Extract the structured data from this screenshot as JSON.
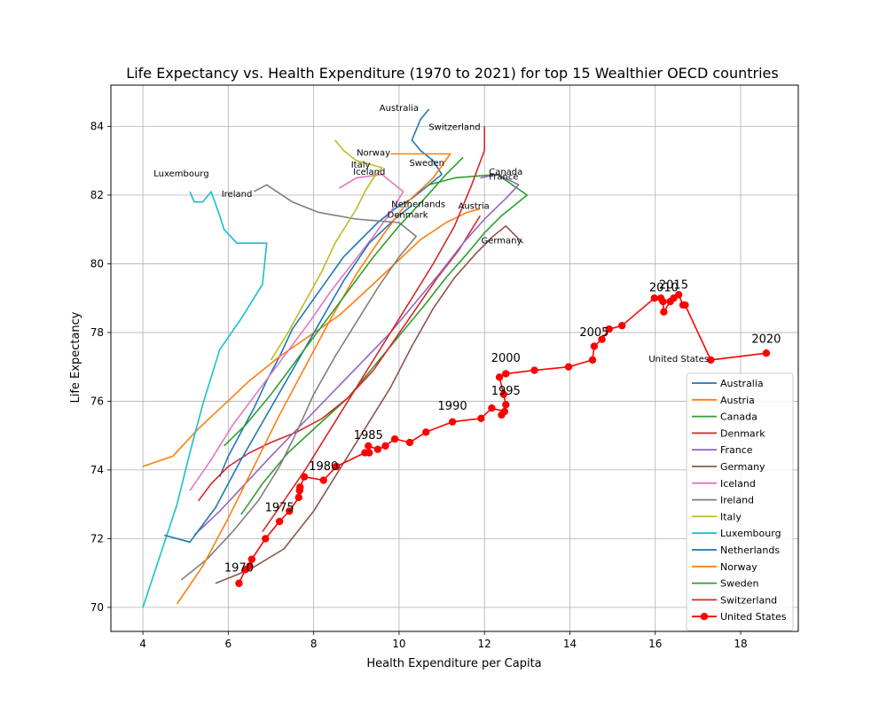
{
  "chart_data": {
    "type": "line",
    "title": "Life Expectancy vs. Health Expenditure (1970 to 2021) for top 15 Wealthier OECD countries",
    "xlabel": "Health Expenditure per Capita",
    "ylabel": "Life Expectancy",
    "xlim": [
      3.25,
      19.35
    ],
    "ylim": [
      69.3,
      85.2
    ],
    "xticks": [
      4,
      6,
      8,
      10,
      12,
      14,
      16,
      18
    ],
    "yticks": [
      70,
      72,
      74,
      76,
      78,
      80,
      82,
      84
    ],
    "grid": true,
    "legend_position": "lower-right",
    "series": [
      {
        "name": "Australia",
        "color": "#1f77b4",
        "x": [
          5.8,
          6.0,
          6.3,
          6.6,
          6.9,
          7.2,
          7.5,
          7.9,
          8.3,
          8.7,
          9.1,
          9.5,
          9.9,
          10.3,
          10.7,
          11.0,
          10.8,
          10.5,
          10.3,
          10.5,
          10.7
        ],
        "y": [
          73.8,
          74.4,
          75.1,
          75.8,
          76.6,
          77.3,
          78.1,
          78.8,
          79.5,
          80.2,
          80.7,
          81.2,
          81.6,
          81.9,
          82.3,
          82.6,
          83.0,
          83.3,
          83.6,
          84.2,
          84.5
        ]
      },
      {
        "name": "Austria",
        "color": "#ff7f0e",
        "x": [
          4.0,
          4.7,
          5.3,
          5.9,
          6.5,
          7.2,
          7.9,
          8.6,
          9.3,
          9.9,
          10.5,
          11.1,
          11.6,
          11.9
        ],
        "y": [
          74.1,
          74.4,
          75.2,
          75.9,
          76.6,
          77.3,
          77.9,
          78.5,
          79.3,
          80.0,
          80.7,
          81.2,
          81.5,
          81.6
        ]
      },
      {
        "name": "Canada",
        "color": "#2ca02c",
        "x": [
          6.3,
          6.8,
          7.4,
          8.1,
          8.8,
          9.4,
          10.0,
          10.6,
          11.1,
          11.6,
          12.0,
          12.4,
          12.8,
          13.0,
          12.3,
          11.3,
          10.7
        ],
        "y": [
          72.7,
          73.6,
          74.5,
          75.3,
          76.1,
          77.0,
          77.9,
          78.8,
          79.6,
          80.3,
          80.9,
          81.4,
          81.8,
          82.0,
          82.6,
          82.5,
          82.3
        ]
      },
      {
        "name": "Denmark",
        "color": "#d62728",
        "x": [
          5.3,
          5.6,
          6.0,
          6.5,
          7.0,
          7.6,
          8.2,
          8.8,
          9.4,
          9.9,
          10.4,
          10.9,
          11.4,
          11.7,
          11.9
        ],
        "y": [
          73.1,
          73.6,
          74.1,
          74.5,
          74.8,
          75.1,
          75.5,
          76.1,
          76.9,
          77.8,
          78.7,
          79.6,
          80.4,
          81.0,
          81.4
        ]
      },
      {
        "name": "France",
        "color": "#9467bd",
        "x": [
          5.2,
          5.8,
          6.4,
          7.0,
          7.7,
          8.4,
          9.1,
          9.8,
          10.4,
          11.0,
          11.5,
          12.0,
          12.5,
          12.8,
          12.3,
          11.9
        ],
        "y": [
          72.1,
          72.8,
          73.6,
          74.4,
          75.3,
          76.2,
          77.1,
          78.0,
          78.9,
          79.8,
          80.6,
          81.3,
          81.9,
          82.3,
          82.6,
          82.5
        ]
      },
      {
        "name": "Germany",
        "color": "#8c564b",
        "x": [
          5.7,
          6.5,
          7.3,
          8.0,
          8.6,
          9.2,
          9.8,
          10.3,
          10.8,
          11.3,
          11.8,
          12.2,
          12.5,
          12.9
        ],
        "y": [
          70.7,
          71.1,
          71.7,
          72.8,
          74.0,
          75.2,
          76.4,
          77.6,
          78.7,
          79.6,
          80.3,
          80.8,
          81.1,
          80.6
        ]
      },
      {
        "name": "Iceland",
        "color": "#e377c2",
        "x": [
          5.1,
          5.6,
          6.1,
          6.7,
          7.3,
          7.9,
          8.4,
          8.9,
          9.4,
          9.8,
          10.1,
          9.6,
          9.0,
          8.6
        ],
        "y": [
          73.4,
          74.3,
          75.3,
          76.3,
          77.3,
          78.3,
          79.2,
          80.0,
          80.8,
          81.5,
          82.1,
          82.6,
          82.5,
          82.2
        ]
      },
      {
        "name": "Ireland",
        "color": "#7f7f7f",
        "x": [
          4.9,
          5.5,
          6.1,
          6.7,
          7.2,
          7.6,
          8.0,
          8.5,
          9.0,
          9.5,
          10.0,
          10.4,
          10.0,
          9.0,
          8.1,
          7.5,
          6.9,
          6.6
        ],
        "y": [
          70.8,
          71.4,
          72.2,
          73.1,
          74.1,
          75.1,
          76.2,
          77.3,
          78.3,
          79.3,
          80.2,
          80.8,
          81.2,
          81.3,
          81.5,
          81.8,
          82.3,
          82.1
        ]
      },
      {
        "name": "Italy",
        "color": "#bcbd22",
        "x": [
          7.0,
          7.4,
          7.8,
          8.2,
          8.5,
          8.8,
          9.0,
          9.2,
          9.4,
          9.6,
          9.0,
          8.7,
          8.5
        ],
        "y": [
          77.2,
          78.0,
          78.9,
          79.8,
          80.6,
          81.2,
          81.6,
          82.1,
          82.5,
          82.8,
          83.0,
          83.3,
          83.6
        ]
      },
      {
        "name": "Luxembourg",
        "color": "#17becf",
        "x": [
          4.0,
          4.4,
          4.8,
          5.1,
          5.4,
          5.8,
          6.3,
          6.8,
          6.9,
          6.2,
          5.9,
          5.8,
          5.6,
          5.4,
          5.2,
          5.1
        ],
        "y": [
          70.0,
          71.5,
          73.0,
          74.5,
          75.9,
          77.5,
          78.4,
          79.4,
          80.6,
          80.6,
          81.0,
          81.4,
          82.1,
          81.8,
          81.8,
          82.1
        ]
      },
      {
        "name": "Netherlands",
        "color": "#1f77b4",
        "x": [
          4.5,
          5.1,
          5.7,
          6.3,
          6.9,
          7.5,
          8.1,
          8.7,
          9.3,
          9.9,
          10.3
        ],
        "y": [
          72.1,
          71.9,
          72.9,
          74.3,
          75.6,
          76.9,
          78.2,
          79.5,
          80.6,
          81.3,
          81.7
        ]
      },
      {
        "name": "Norway",
        "color": "#ff7f0e",
        "x": [
          4.8,
          5.4,
          6.0,
          6.6,
          7.2,
          7.8,
          8.4,
          9.0,
          9.6,
          10.2,
          10.8,
          11.2,
          10.6,
          9.8
        ],
        "y": [
          70.1,
          71.2,
          72.6,
          74.1,
          75.6,
          77.0,
          78.4,
          79.7,
          80.8,
          81.8,
          82.5,
          83.2,
          83.2,
          83.2
        ]
      },
      {
        "name": "Sweden",
        "color": "#2ca02c",
        "x": [
          5.9,
          6.4,
          7.0,
          7.6,
          8.2,
          8.8,
          9.4,
          10.0,
          10.6,
          11.1,
          11.5
        ],
        "y": [
          74.7,
          75.3,
          76.2,
          77.2,
          78.2,
          79.2,
          80.2,
          81.1,
          81.9,
          82.6,
          83.1
        ]
      },
      {
        "name": "Switzerland",
        "color": "#d62728",
        "x": [
          6.8,
          7.3,
          7.8,
          8.3,
          8.8,
          9.3,
          9.8,
          10.3,
          10.8,
          11.3,
          11.7,
          12.0,
          12.0
        ],
        "y": [
          72.2,
          73.1,
          74.0,
          75.0,
          76.0,
          77.0,
          78.0,
          79.0,
          80.0,
          81.1,
          82.3,
          83.3,
          84.0
        ]
      },
      {
        "name": "United States",
        "color": "#ff0000",
        "x": [
          6.25,
          6.4,
          6.5,
          6.55,
          6.87,
          7.2,
          7.43,
          7.65,
          7.67,
          7.68,
          7.78,
          8.23,
          8.53,
          9.2,
          9.3,
          9.28,
          9.5,
          9.68,
          9.9,
          10.25,
          10.63,
          11.25,
          11.92,
          12.17,
          12.47,
          12.4,
          12.5,
          12.45,
          12.35,
          12.5,
          13.17,
          13.97,
          14.53,
          14.57,
          14.75,
          14.92,
          15.22,
          15.98,
          16.13,
          16.18,
          16.2,
          16.35,
          16.43,
          16.55,
          16.65,
          16.7,
          17.3,
          18.6
        ],
        "y": [
          70.7,
          71.1,
          71.2,
          71.4,
          72.0,
          72.5,
          72.8,
          73.2,
          73.4,
          73.5,
          73.8,
          73.7,
          74.1,
          74.5,
          74.5,
          74.7,
          74.6,
          74.7,
          74.9,
          74.8,
          75.1,
          75.4,
          75.5,
          75.8,
          75.7,
          75.6,
          75.9,
          76.2,
          76.7,
          76.8,
          76.9,
          77.0,
          77.2,
          77.6,
          77.8,
          78.1,
          78.2,
          79.0,
          79.0,
          78.9,
          78.6,
          78.9,
          79.0,
          79.1,
          78.8,
          78.8,
          77.2,
          77.4
        ]
      }
    ],
    "country_annotations": [
      {
        "text": "Australia",
        "x": 10.0,
        "y": 84.55
      },
      {
        "text": "Switzerland",
        "x": 11.3,
        "y": 84.0
      },
      {
        "text": "Norway",
        "x": 9.4,
        "y": 83.25
      },
      {
        "text": "Sweden",
        "x": 10.65,
        "y": 82.95
      },
      {
        "text": "Italy",
        "x": 9.1,
        "y": 82.9
      },
      {
        "text": "Iceland",
        "x": 9.3,
        "y": 82.7
      },
      {
        "text": "Canada",
        "x": 12.5,
        "y": 82.7
      },
      {
        "text": "France",
        "x": 12.45,
        "y": 82.55
      },
      {
        "text": "Luxembourg",
        "x": 4.9,
        "y": 82.65
      },
      {
        "text": "Ireland",
        "x": 6.2,
        "y": 82.05
      },
      {
        "text": "Netherlands",
        "x": 10.45,
        "y": 81.75
      },
      {
        "text": "Austria",
        "x": 11.75,
        "y": 81.7
      },
      {
        "text": "Denmark",
        "x": 10.2,
        "y": 81.45
      },
      {
        "text": "Germany",
        "x": 12.4,
        "y": 80.7
      },
      {
        "text": "United States",
        "x": 16.55,
        "y": 77.25
      }
    ],
    "year_annotations": [
      {
        "text": "1970",
        "x": 6.25,
        "y": 71.15
      },
      {
        "text": "1975",
        "x": 7.2,
        "y": 72.9
      },
      {
        "text": "1980",
        "x": 8.23,
        "y": 74.1
      },
      {
        "text": "1985",
        "x": 9.28,
        "y": 75.0
      },
      {
        "text": "1990",
        "x": 11.25,
        "y": 75.85
      },
      {
        "text": "1995",
        "x": 12.5,
        "y": 76.3
      },
      {
        "text": "2000",
        "x": 12.5,
        "y": 77.25
      },
      {
        "text": "2005",
        "x": 14.57,
        "y": 78.0
      },
      {
        "text": "2010",
        "x": 16.2,
        "y": 79.3
      },
      {
        "text": "2015",
        "x": 16.43,
        "y": 79.38
      },
      {
        "text": "2020",
        "x": 18.6,
        "y": 77.8
      }
    ]
  }
}
